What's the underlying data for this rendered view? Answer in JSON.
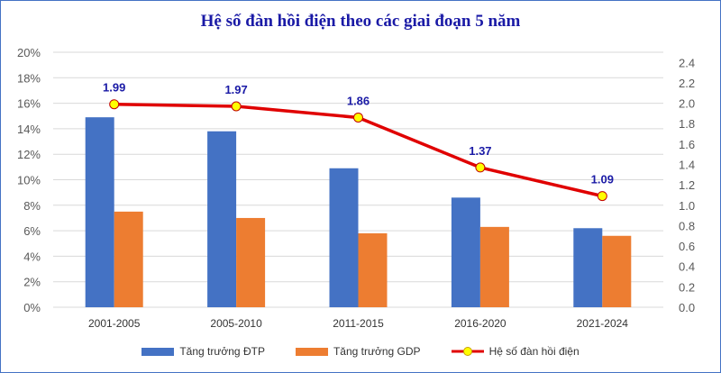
{
  "chart_data": {
    "type": "bar",
    "title": "Hệ số đàn hồi điện theo các giai đoạn 5 năm",
    "categories": [
      "2001-2005",
      "2005-2010",
      "2011-2015",
      "2016-2020",
      "2021-2024"
    ],
    "series": [
      {
        "name": "Tăng trưởng ĐTP",
        "type": "bar",
        "axis": "left",
        "color": "#4472c4",
        "values": [
          14.9,
          13.8,
          10.9,
          8.6,
          6.2
        ]
      },
      {
        "name": "Tăng trưởng GDP",
        "type": "bar",
        "axis": "left",
        "color": "#ed7d31",
        "values": [
          7.5,
          7.0,
          5.8,
          6.3,
          5.6
        ]
      },
      {
        "name": "Hệ số đàn hồi điện",
        "type": "line",
        "axis": "right",
        "color": "#e00000",
        "marker_color": "#ffff00",
        "values": [
          1.99,
          1.97,
          1.86,
          1.37,
          1.09
        ],
        "data_labels": [
          "1.99",
          "1.97",
          "1.86",
          "1.37",
          "1.09"
        ]
      }
    ],
    "left_axis": {
      "ylim": [
        0,
        20
      ],
      "ticks": [
        "0%",
        "2%",
        "4%",
        "6%",
        "8%",
        "10%",
        "12%",
        "14%",
        "16%",
        "18%",
        "20%"
      ]
    },
    "right_axis": {
      "ylim": [
        0,
        2.5
      ],
      "ticks": [
        "0.0",
        "0.2",
        "0.4",
        "0.6",
        "0.8",
        "1.0",
        "1.2",
        "1.4",
        "1.6",
        "1.8",
        "2.0",
        "2.2",
        "2.4"
      ]
    },
    "grid": true,
    "legend": "bottom"
  }
}
